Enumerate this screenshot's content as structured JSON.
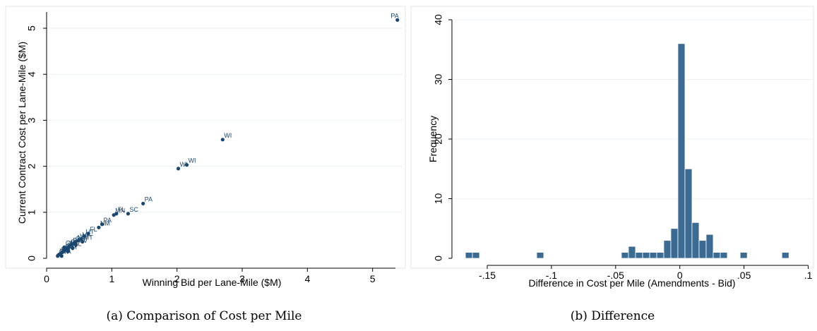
{
  "captions": {
    "a": "(a) Comparison of Cost per Mile",
    "b": "(b) Difference"
  },
  "chart_data": [
    {
      "type": "scatter",
      "title": "",
      "xlabel": "Winning Bid per Lane-Mile ($M)",
      "ylabel": "Current Contract Cost per Lane-Mile ($M)",
      "xlim": [
        0,
        5.35
      ],
      "ylim": [
        0,
        5.2
      ],
      "xticks": [
        0,
        1,
        2,
        3,
        4,
        5
      ],
      "yticks": [
        0,
        1,
        2,
        3,
        4,
        5
      ],
      "marker": "state label",
      "color": "#1a476f",
      "points": [
        {
          "x": 5.38,
          "y": 5.18,
          "label": "PA"
        },
        {
          "x": 2.7,
          "y": 2.58,
          "label": "WI"
        },
        {
          "x": 2.15,
          "y": 2.03,
          "label": "WI"
        },
        {
          "x": 2.02,
          "y": 1.95,
          "label": "WI"
        },
        {
          "x": 1.48,
          "y": 1.19,
          "label": "PA"
        },
        {
          "x": 1.25,
          "y": 0.97,
          "label": "SC"
        },
        {
          "x": 1.07,
          "y": 0.97,
          "label": "FL"
        },
        {
          "x": 1.03,
          "y": 0.94,
          "label": "MN"
        },
        {
          "x": 0.85,
          "y": 0.74,
          "label": "PA"
        },
        {
          "x": 0.8,
          "y": 0.67,
          "label": "NM"
        },
        {
          "x": 0.64,
          "y": 0.54,
          "label": "FL"
        },
        {
          "x": 0.58,
          "y": 0.48,
          "label": "UT"
        },
        {
          "x": 0.53,
          "y": 0.42,
          "label": "VA"
        },
        {
          "x": 0.49,
          "y": 0.39,
          "label": "WI"
        },
        {
          "x": 0.45,
          "y": 0.36,
          "label": "NC"
        },
        {
          "x": 0.42,
          "y": 0.33,
          "label": "OH"
        },
        {
          "x": 0.38,
          "y": 0.3,
          "label": "PA"
        },
        {
          "x": 0.35,
          "y": 0.26,
          "label": "FL"
        },
        {
          "x": 0.32,
          "y": 0.23,
          "label": "TX"
        },
        {
          "x": 0.3,
          "y": 0.2,
          "label": "WV"
        },
        {
          "x": 0.28,
          "y": 0.18,
          "label": "OH"
        },
        {
          "x": 0.26,
          "y": 0.15,
          "label": "PA"
        },
        {
          "x": 0.24,
          "y": 0.13,
          "label": "MN"
        },
        {
          "x": 0.22,
          "y": 0.11,
          "label": "VA"
        },
        {
          "x": 0.2,
          "y": 0.09,
          "label": "NC"
        },
        {
          "x": 0.18,
          "y": 0.07,
          "label": "WI"
        },
        {
          "x": 0.17,
          "y": 0.05,
          "label": "OH"
        },
        {
          "x": 0.33,
          "y": 0.15,
          "label": "UT"
        },
        {
          "x": 0.4,
          "y": 0.22,
          "label": "FL"
        },
        {
          "x": 0.27,
          "y": 0.24,
          "label": "OH"
        },
        {
          "x": 0.23,
          "y": 0.05,
          "label": "VA"
        },
        {
          "x": 0.45,
          "y": 0.29,
          "label": "WV"
        },
        {
          "x": 0.55,
          "y": 0.36,
          "label": "MT"
        }
      ]
    },
    {
      "type": "bar",
      "title": "",
      "xlabel": "Difference in Cost per Mile (Amendments - Bid)",
      "ylabel": "Frequency",
      "xlim": [
        -0.172,
        0.103
      ],
      "ylim": [
        0,
        40
      ],
      "xticks": [
        -0.15,
        -0.1,
        -0.05,
        0,
        0.05,
        0.1
      ],
      "xticklabels": [
        "-.15",
        "-.1",
        "-.05",
        "0",
        ".05",
        ".1"
      ],
      "yticks": [
        0,
        10,
        20,
        30,
        40
      ],
      "bin_width": 0.0055,
      "color": "#3b6a93",
      "bins": [
        {
          "start": -0.167,
          "count": 1
        },
        {
          "start": -0.1615,
          "count": 1
        },
        {
          "start": -0.1115,
          "count": 1
        },
        {
          "start": -0.0455,
          "count": 1
        },
        {
          "start": -0.04,
          "count": 2
        },
        {
          "start": -0.0345,
          "count": 1
        },
        {
          "start": -0.029,
          "count": 1
        },
        {
          "start": -0.0235,
          "count": 1
        },
        {
          "start": -0.018,
          "count": 1
        },
        {
          "start": -0.0125,
          "count": 3
        },
        {
          "start": -0.007,
          "count": 5
        },
        {
          "start": -0.0015,
          "count": 36
        },
        {
          "start": 0.004,
          "count": 15
        },
        {
          "start": 0.0095,
          "count": 6
        },
        {
          "start": 0.015,
          "count": 3
        },
        {
          "start": 0.0205,
          "count": 4
        },
        {
          "start": 0.026,
          "count": 1
        },
        {
          "start": 0.0315,
          "count": 1
        },
        {
          "start": 0.047,
          "count": 1
        },
        {
          "start": 0.0795,
          "count": 1
        }
      ]
    }
  ]
}
